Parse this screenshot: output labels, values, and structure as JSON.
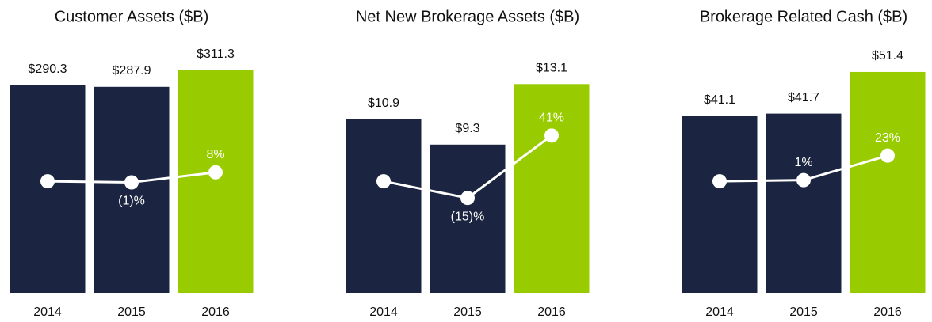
{
  "chart_data": [
    {
      "type": "bar",
      "title": "Customer Assets ($B)",
      "categories": [
        "2014",
        "2015",
        "2016"
      ],
      "series": [
        {
          "values": [
            290.3,
            287.9,
            311.3
          ],
          "value_labels": [
            "$290.3",
            "$287.9",
            "$311.3"
          ],
          "colors": [
            "#1b2440",
            "#1b2440",
            "#99cc00"
          ]
        },
        {
          "type": "line",
          "axis": "y2",
          "color": "#ffffff",
          "values": [
            0,
            -1,
            8
          ],
          "value_labels": [
            null,
            "(1)%",
            "8%"
          ]
        }
      ],
      "ylim": [
        0,
        343
      ],
      "y2lim": [
        -100,
        120
      ]
    },
    {
      "type": "bar",
      "title": "Net New Brokerage Assets ($B)",
      "categories": [
        "2014",
        "2015",
        "2016"
      ],
      "series": [
        {
          "values": [
            10.9,
            9.3,
            13.1
          ],
          "value_labels": [
            "$10.9",
            "$9.3",
            "$13.1"
          ],
          "colors": [
            "#1b2440",
            "#1b2440",
            "#99cc00"
          ]
        },
        {
          "type": "line",
          "axis": "y2",
          "color": "#ffffff",
          "values": [
            0,
            -15,
            41
          ],
          "value_labels": [
            null,
            "(15)%",
            "41%"
          ]
        }
      ],
      "ylim": [
        0,
        15.4
      ],
      "y2lim": [
        -100,
        120
      ]
    },
    {
      "type": "bar",
      "title": "Brokerage Related Cash ($B)",
      "categories": [
        "2014",
        "2015",
        "2016"
      ],
      "series": [
        {
          "values": [
            41.1,
            41.7,
            51.4
          ],
          "value_labels": [
            "$41.1",
            "$41.7",
            "$51.4"
          ],
          "colors": [
            "#1b2440",
            "#1b2440",
            "#99cc00"
          ]
        },
        {
          "type": "line",
          "axis": "y2",
          "color": "#ffffff",
          "values": [
            0,
            1,
            23
          ],
          "value_labels": [
            null,
            "1%",
            "23%"
          ]
        }
      ],
      "ylim": [
        0,
        57.1
      ],
      "y2lim": [
        -100,
        120
      ]
    }
  ]
}
